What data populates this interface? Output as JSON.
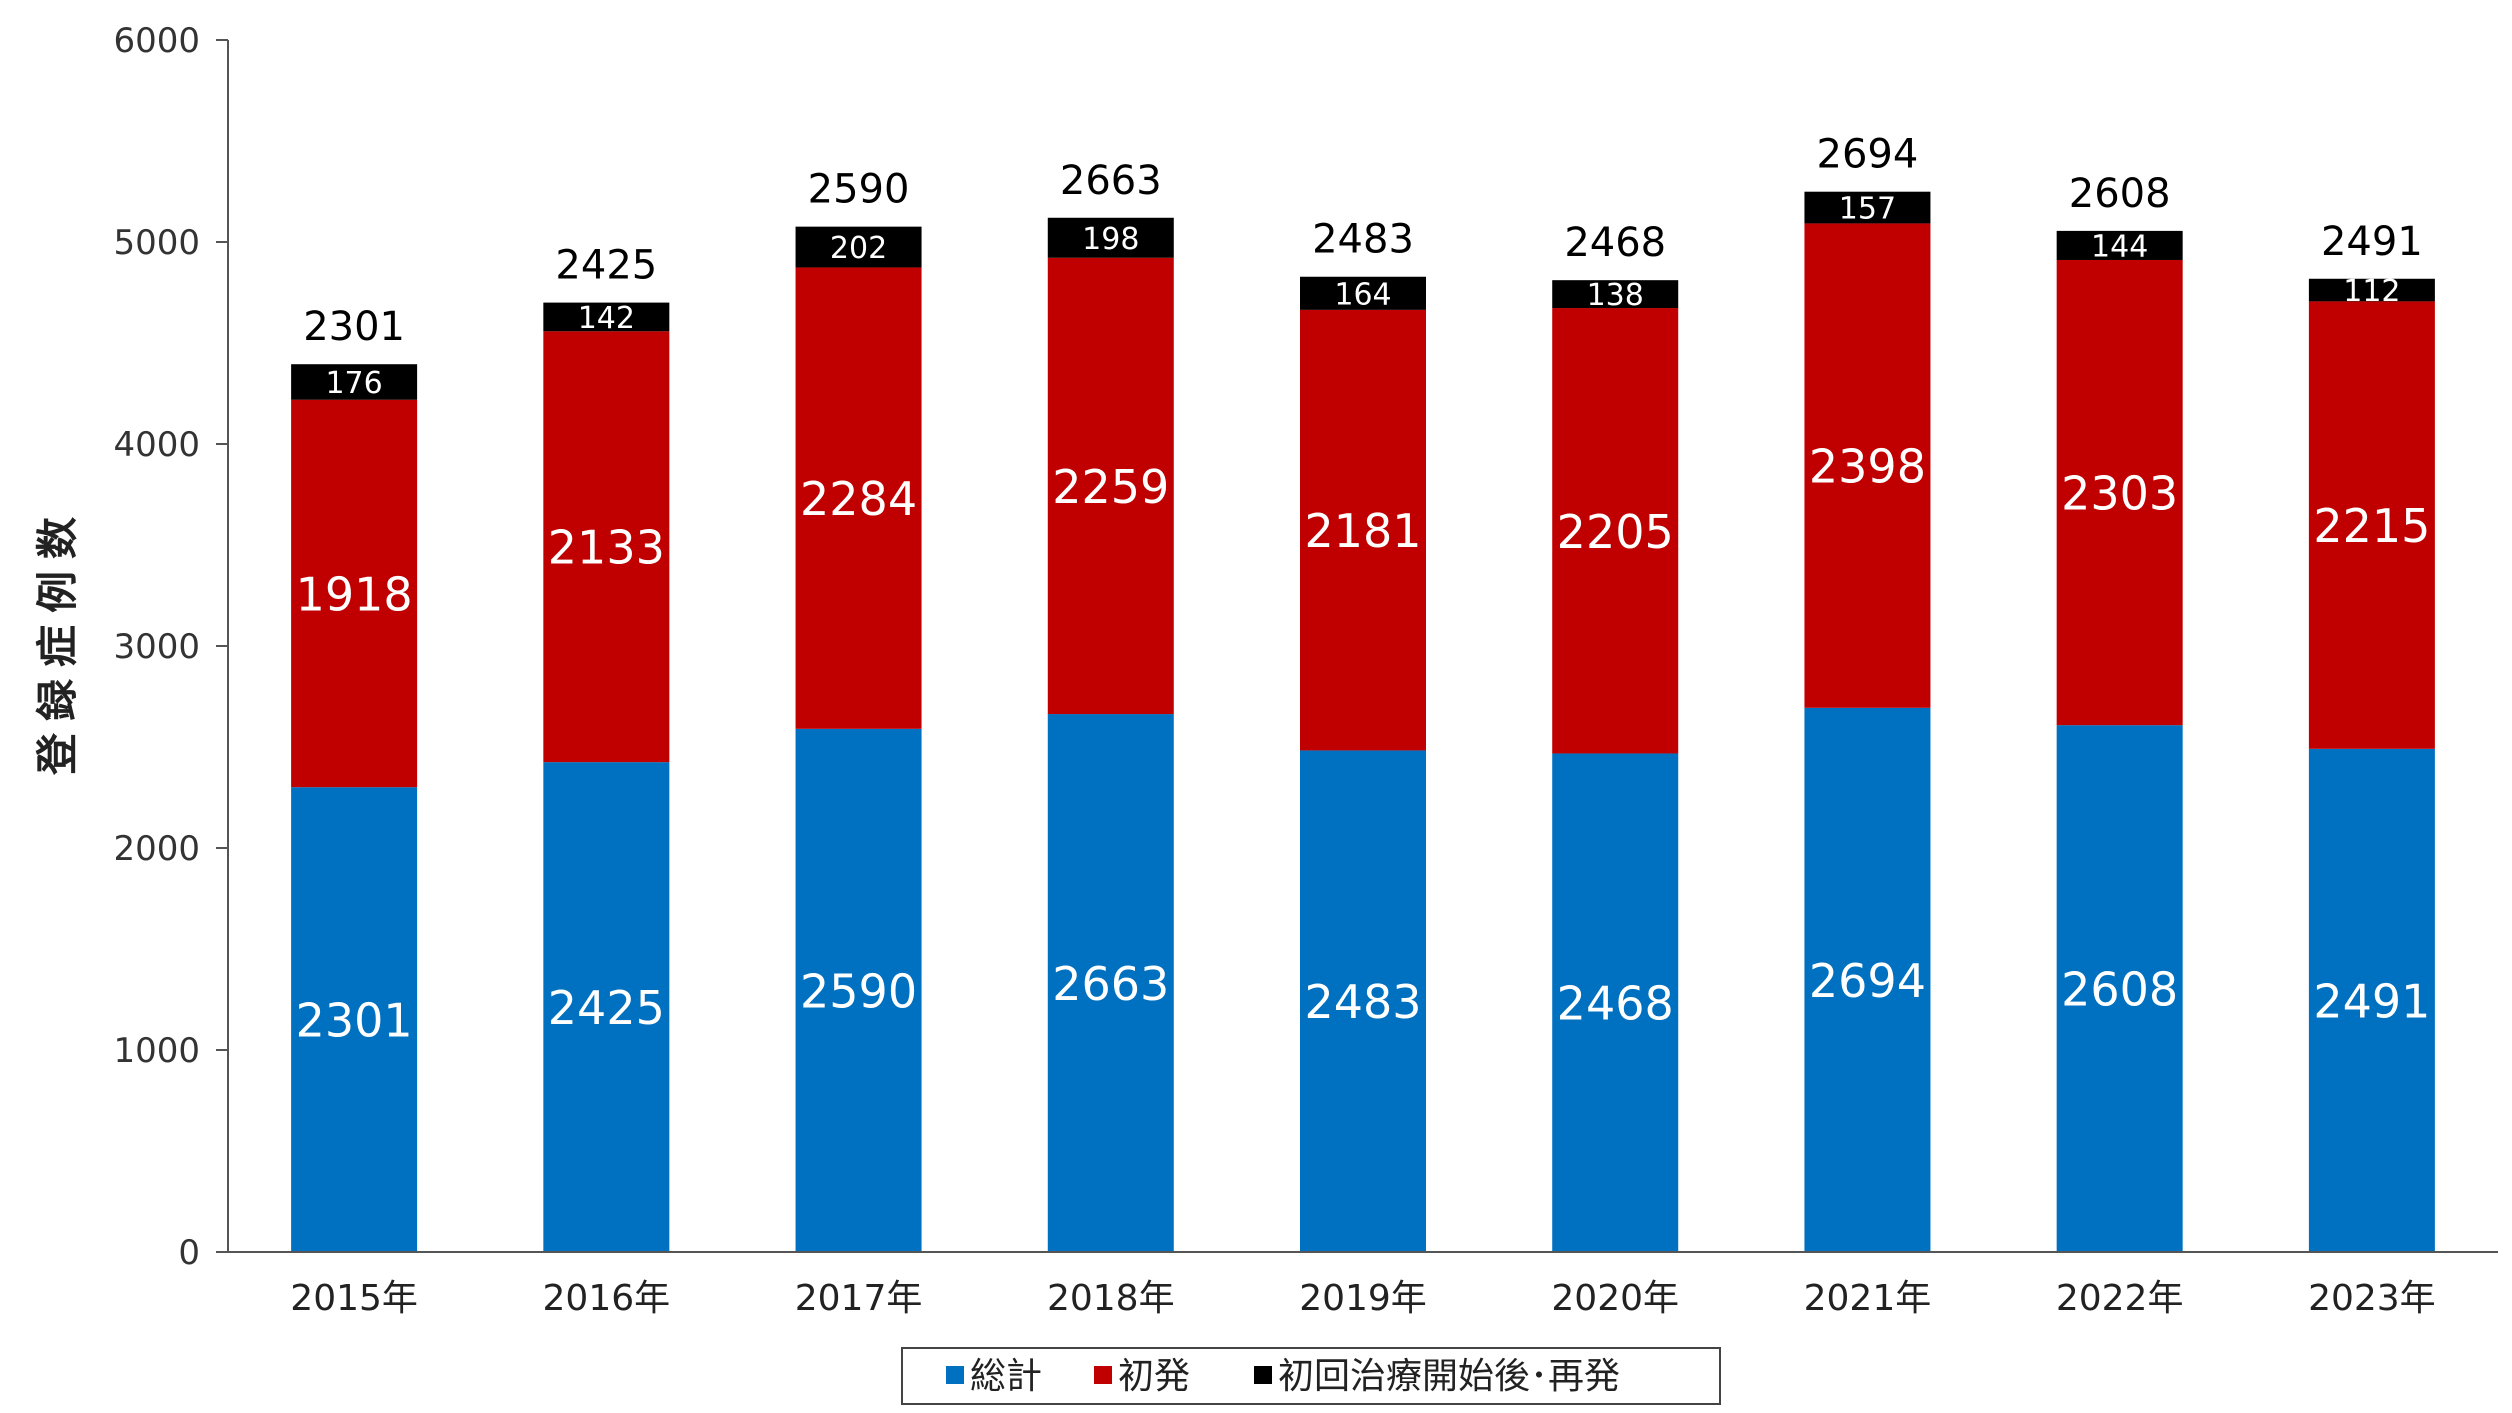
{
  "chart_data": {
    "type": "bar",
    "stacked": true,
    "title": "",
    "xlabel": "",
    "ylabel": "登録症例数",
    "ylim": [
      0,
      6000
    ],
    "yticks": [
      0,
      1000,
      2000,
      3000,
      4000,
      5000,
      6000
    ],
    "categories": [
      "2015年",
      "2016年",
      "2017年",
      "2018年",
      "2019年",
      "2020年",
      "2021年",
      "2022年",
      "2023年"
    ],
    "series": [
      {
        "name": "総計",
        "color": "#0070C0",
        "values": [
          2301,
          2425,
          2590,
          2663,
          2483,
          2468,
          2694,
          2608,
          2491
        ]
      },
      {
        "name": "初発",
        "color": "#C00000",
        "values": [
          1918,
          2133,
          2284,
          2259,
          2181,
          2205,
          2398,
          2303,
          2215
        ]
      },
      {
        "name": "初回治療開始後･再発",
        "color": "#000000",
        "values": [
          176,
          142,
          202,
          198,
          164,
          138,
          157,
          144,
          112
        ]
      }
    ],
    "top_labels": [
      2301,
      2425,
      2590,
      2663,
      2483,
      2468,
      2694,
      2608,
      2491
    ],
    "legend": {
      "position": "bottom-center",
      "entries": [
        "総計",
        "初発",
        "初回治療開始後･再発"
      ]
    },
    "grid": false
  }
}
